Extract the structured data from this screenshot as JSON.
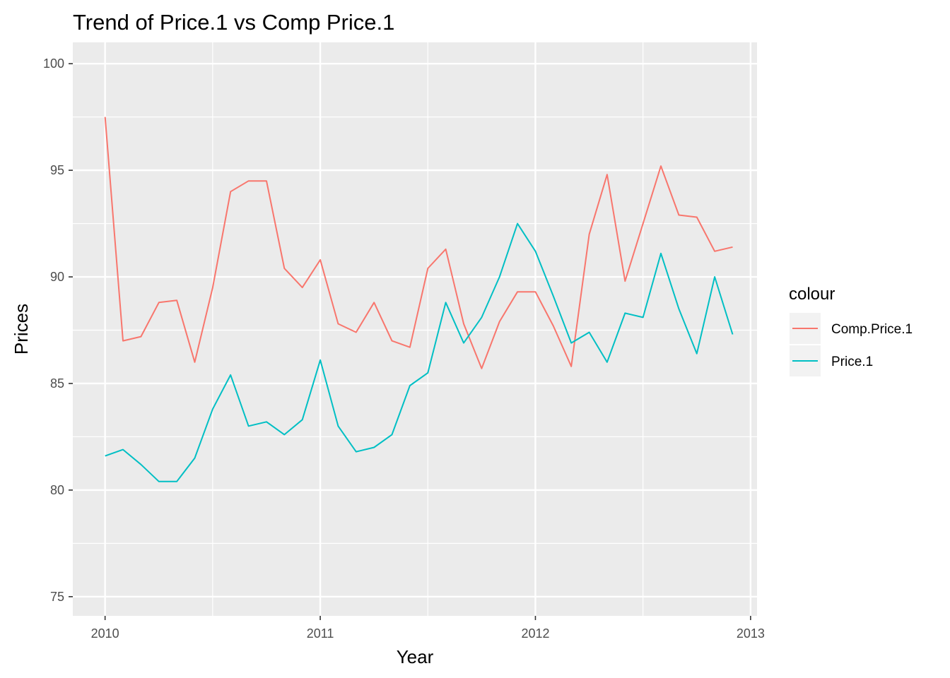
{
  "chart_data": {
    "type": "line",
    "title": "Trend of Price.1 vs Comp Price.1",
    "xlabel": "Year",
    "ylabel": "Prices",
    "xlim": [
      2009.85,
      2013.03
    ],
    "ylim": [
      74.1,
      101.0
    ],
    "x_ticks": [
      2010,
      2011,
      2012,
      2013
    ],
    "y_ticks": [
      75,
      80,
      85,
      90,
      95,
      100
    ],
    "grid": true,
    "background": "#EBEBEB",
    "legend": {
      "title": "colour",
      "position": "right"
    },
    "x": [
      2010.0,
      2010.0833,
      2010.1667,
      2010.25,
      2010.3333,
      2010.4167,
      2010.5,
      2010.5833,
      2010.6667,
      2010.75,
      2010.8333,
      2010.9167,
      2011.0,
      2011.0833,
      2011.1667,
      2011.25,
      2011.3333,
      2011.4167,
      2011.5,
      2011.5833,
      2011.6667,
      2011.75,
      2011.8333,
      2011.9167,
      2012.0,
      2012.0833,
      2012.1667,
      2012.25,
      2012.3333,
      2012.4167,
      2012.5,
      2012.5833,
      2012.6667,
      2012.75,
      2012.8333,
      2012.9167
    ],
    "series": [
      {
        "name": "Comp.Price.1",
        "color": "#F8766D",
        "values": [
          97.5,
          87.0,
          87.2,
          88.8,
          88.9,
          86.0,
          89.5,
          94.0,
          94.5,
          94.5,
          90.4,
          89.5,
          90.8,
          87.8,
          87.4,
          88.8,
          87.0,
          86.7,
          90.4,
          91.3,
          87.8,
          85.7,
          87.9,
          89.3,
          89.3,
          87.7,
          85.8,
          92.0,
          94.8,
          89.8,
          92.5,
          95.2,
          92.9,
          92.8,
          91.2,
          91.4
        ]
      },
      {
        "name": "Price.1",
        "color": "#00BFC4",
        "values": [
          81.6,
          81.9,
          81.2,
          80.4,
          80.4,
          81.5,
          83.8,
          85.4,
          83.0,
          83.2,
          82.6,
          83.3,
          86.1,
          83.0,
          81.8,
          82.0,
          82.6,
          84.9,
          85.5,
          88.8,
          86.9,
          88.1,
          90.0,
          92.5,
          91.2,
          89.1,
          86.9,
          87.4,
          86.0,
          88.3,
          88.1,
          91.1,
          88.5,
          86.4,
          90.0,
          87.3
        ]
      }
    ]
  }
}
